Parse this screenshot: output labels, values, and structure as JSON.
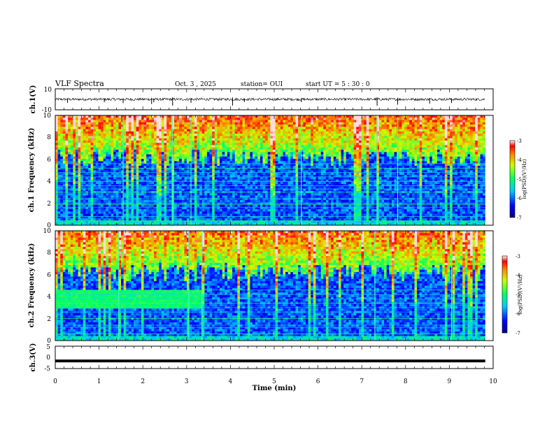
{
  "header": {
    "title": "VLF Spectra",
    "date": "Oct. 3 , 2025",
    "station": "station= OUI",
    "start_ut": "start UT =   5 : 30 : 0"
  },
  "colors": {
    "spectrum_low": "#00007f",
    "spectrum_mid": "#00ff7f",
    "spectrum_high": "#ff0000",
    "trace": "#000000"
  },
  "chart_data": [
    {
      "type": "line",
      "panel": "ch1-waveform",
      "ylabel": "ch.1(V)",
      "xlim": [
        0,
        10
      ],
      "ylim": [
        -10,
        10
      ],
      "yticks": [
        "10",
        "-10"
      ],
      "baseline": 0,
      "noise_amplitude": 1.2,
      "spike_times_min": [
        0.28,
        1.12,
        1.55,
        2.2,
        2.25,
        2.68,
        3.1,
        4.05,
        4.32,
        5.62,
        7.35,
        7.82,
        8.55,
        9.05
      ]
    },
    {
      "type": "heatmap",
      "panel": "ch1-spectrogram",
      "ylabel": "ch.1 Frequency (kHz)",
      "xlim": [
        0,
        10
      ],
      "ylim": [
        0,
        10
      ],
      "yticks": [
        "0",
        "2",
        "4",
        "6",
        "8",
        "10"
      ],
      "colorbar": {
        "label": "log(PSD)(V²/Hz)",
        "range": [
          -7,
          -3
        ],
        "ticks": [
          "-3",
          "-4",
          "-5",
          "-6",
          "-7"
        ]
      },
      "narrowband_khz": [
        0.4,
        0.8,
        1.6,
        1.9,
        2.0,
        2.4,
        3.0,
        3.3,
        3.6,
        4.0,
        4.4,
        4.8,
        5.2,
        5.6
      ],
      "transient_times_min": [
        1.55,
        2.68,
        3.1,
        5.62,
        7.35,
        7.82
      ]
    },
    {
      "type": "heatmap",
      "panel": "ch2-spectrogram",
      "ylabel": "ch.2 Frequency (kHz)",
      "xlim": [
        0,
        10
      ],
      "ylim": [
        0,
        10
      ],
      "yticks": [
        "0",
        "2",
        "4",
        "6",
        "8",
        "10"
      ],
      "colorbar": {
        "label": "log(PSD)(V²/Hz)",
        "range": [
          -7,
          -3
        ],
        "ticks": [
          "-3",
          "-4",
          "-5",
          "-6",
          "-7"
        ]
      },
      "narrowband_khz": [
        0.6,
        1.2,
        1.4,
        2.0,
        2.6,
        3.0,
        3.4,
        3.8,
        4.2,
        4.6
      ],
      "enhanced_band_khz": [
        3.0,
        4.5
      ],
      "enhanced_band_end_min": 3.35,
      "transient_times_min": [
        1.45,
        3.05,
        3.35,
        7.3,
        9.05
      ]
    },
    {
      "type": "line",
      "panel": "ch3-waveform",
      "ylabel": "ch.3(V)",
      "xlim": [
        0,
        10
      ],
      "ylim": [
        -5,
        5
      ],
      "yticks": [
        "5",
        "0",
        "-5"
      ],
      "level": -1.6,
      "xlabel": "Time (min)",
      "xticks": [
        "0",
        "1",
        "2",
        "3",
        "4",
        "5",
        "6",
        "7",
        "8",
        "9",
        "10"
      ]
    }
  ]
}
